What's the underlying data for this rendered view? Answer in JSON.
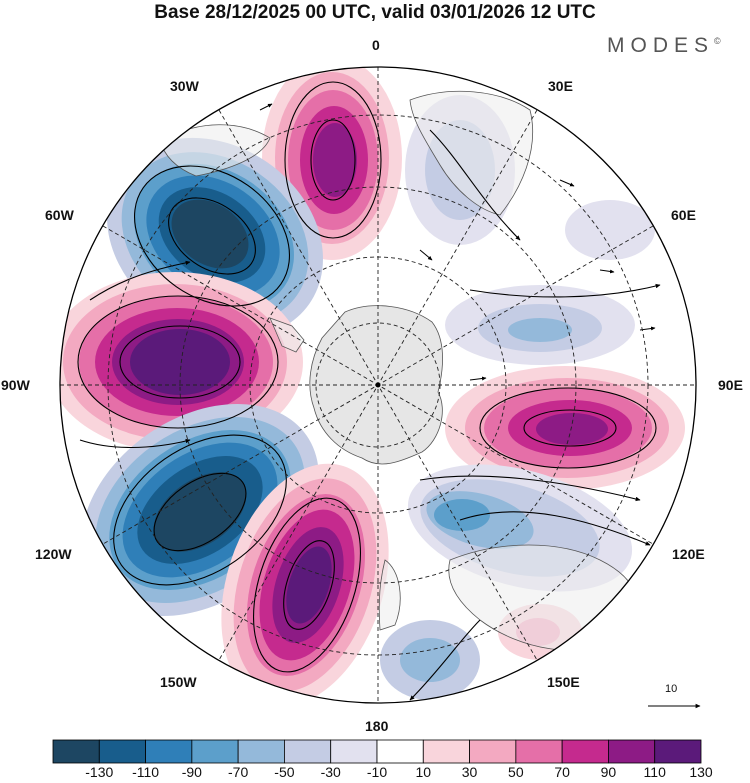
{
  "title": "Base 28/12/2025 00 UTC, valid 03/01/2026 12 UTC",
  "brand": "MODES",
  "brand_mark": "©",
  "longitude_labels": {
    "lon_0": "0",
    "lon_30e": "30E",
    "lon_60e": "60E",
    "lon_90e": "90E",
    "lon_120e": "120E",
    "lon_150e": "150E",
    "lon_180": "180",
    "lon_150w": "150W",
    "lon_120w": "120W",
    "lon_90w": "90W",
    "lon_60w": "60W",
    "lon_30w": "30W"
  },
  "colorbar": {
    "labels": [
      "-130",
      "-110",
      "-90",
      "-70",
      "-50",
      "-30",
      "-10",
      "10",
      "30",
      "50",
      "70",
      "90",
      "110",
      "130"
    ],
    "colors": [
      "#1d4662",
      "#185d8c",
      "#2f7fb8",
      "#5c9fcb",
      "#94b9da",
      "#c4cce4",
      "#e2e1ef",
      "#ffffff",
      "#f9d5dc",
      "#f3a9c1",
      "#e56fa8",
      "#c52a8e",
      "#8d1b85",
      "#5b1a7a"
    ]
  },
  "vector_reference": {
    "value": "10"
  },
  "colors": {
    "land": "#ececec",
    "grid": "#222222",
    "outline": "#000000"
  }
}
